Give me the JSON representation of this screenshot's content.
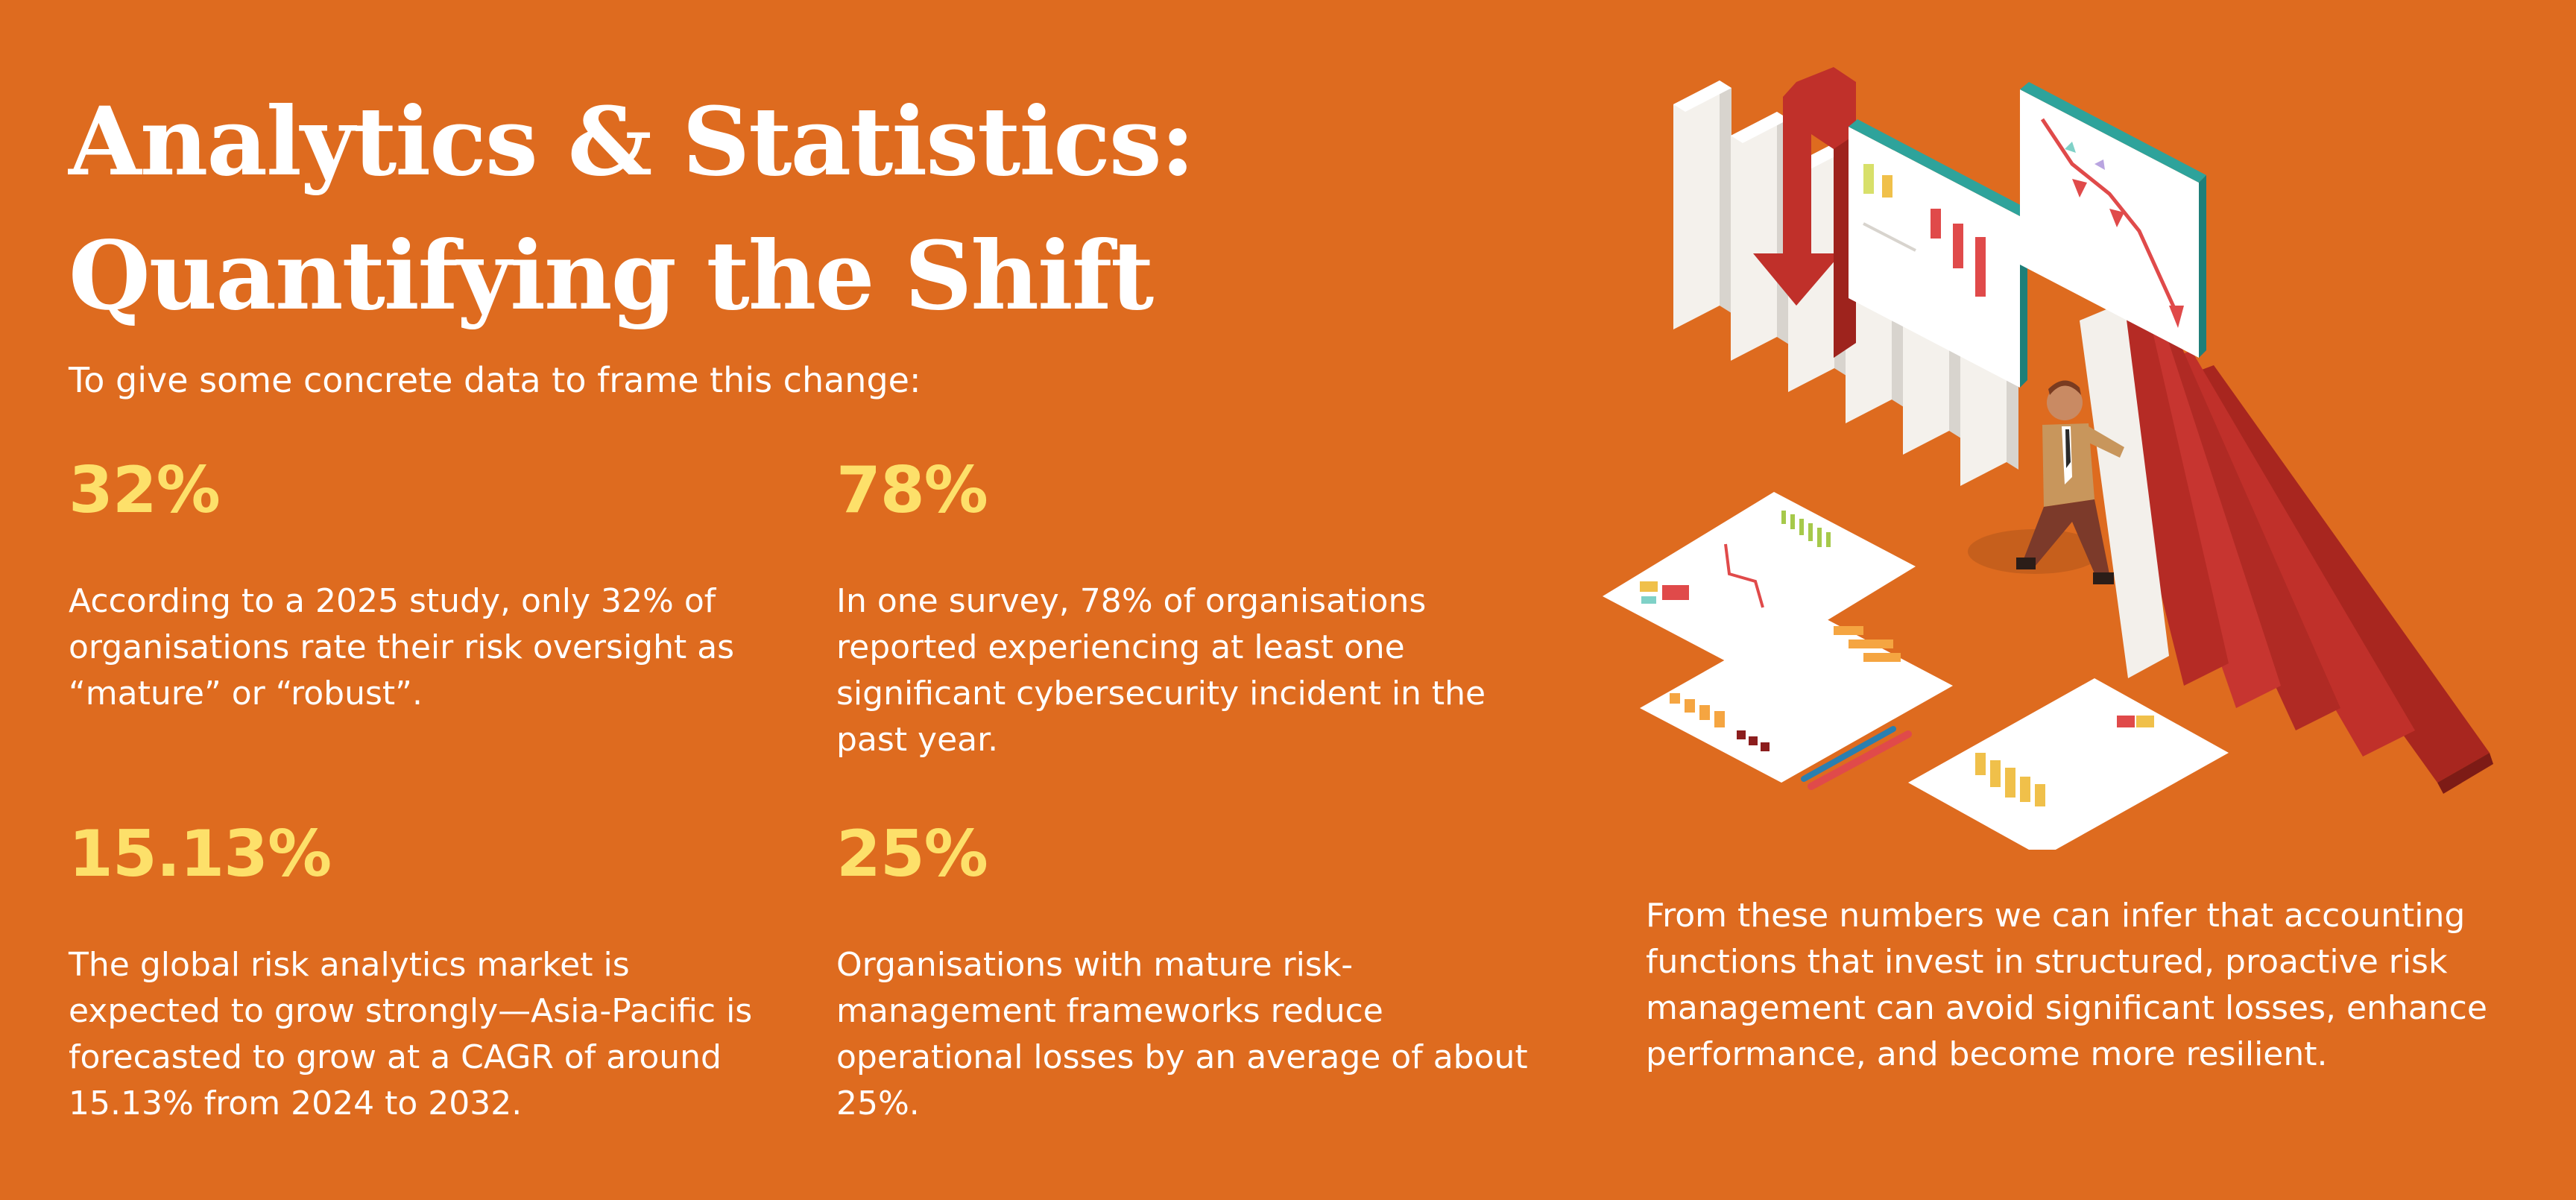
{
  "title": "Analytics & Statistics: Quantifying the Shift",
  "intro": "To give some concrete data to frame this change:",
  "stats": [
    {
      "value": "32%",
      "description": "According to a 2025 study, only 32% of organisations rate their risk oversight as “mature” or “robust”."
    },
    {
      "value": "78%",
      "description": "In one survey, 78% of organisations reported experiencing at least one significant cybersecurity incident in the past year."
    },
    {
      "value": "15.13%",
      "description": "The global risk analytics market is expected to grow strongly—Asia-Pacific is forecasted to grow at a CAGR of around 15.13% from 2024 to 2032."
    },
    {
      "value": "25%",
      "description": "Organisations with mature risk-management frameworks reduce operational losses by an average of about 25%."
    }
  ],
  "conclusion": "From these numbers we can infer that accounting functions that invest in structured, proactive risk management can avoid significant losses, enhance performance, and become more resilient.",
  "colors": {
    "background": "#de6b1f",
    "accent": "#fde06a",
    "text": "#ffffff",
    "domino_red": "#c0302a",
    "domino_white": "#f1efeb"
  },
  "illustration": {
    "name": "isometric-dominoes-risk-illustration"
  }
}
